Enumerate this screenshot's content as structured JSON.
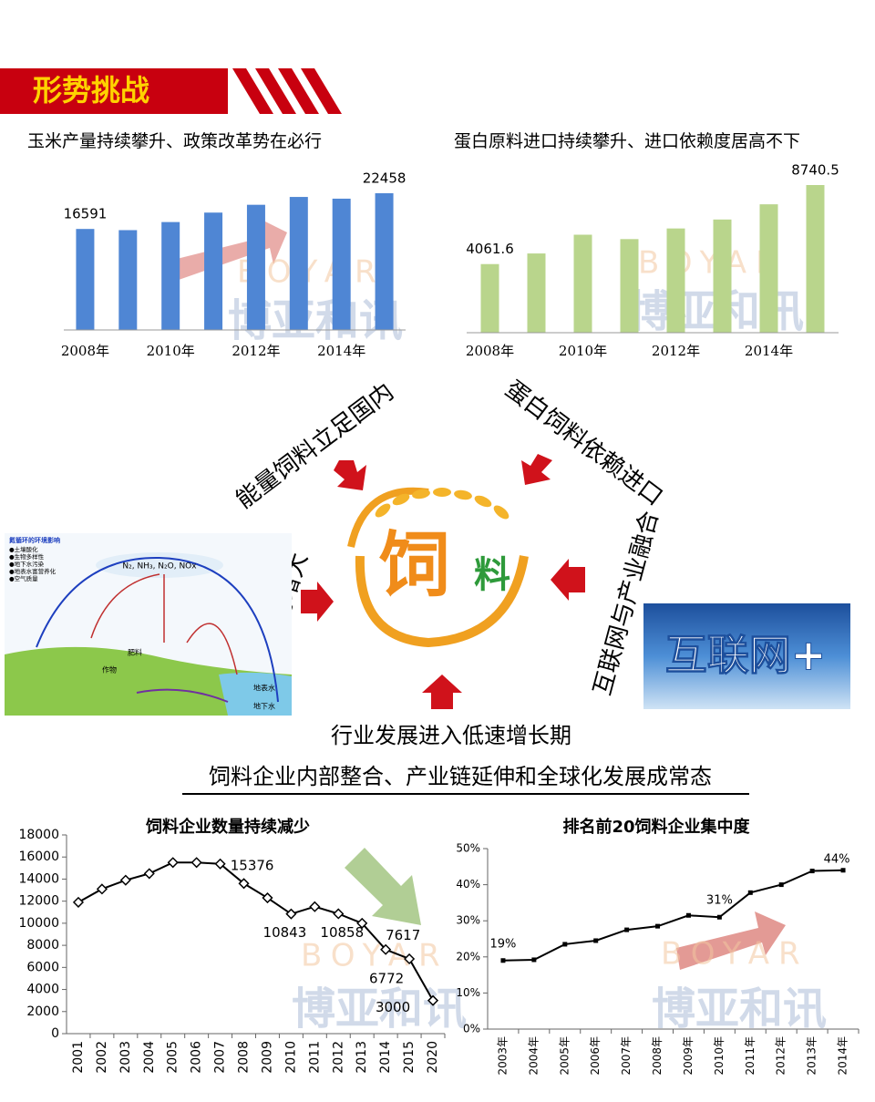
{
  "header": {
    "title": "形势挑战"
  },
  "watermark": {
    "latin": "BOYAR",
    "chinese": "博亚和讯"
  },
  "chart_data": [
    {
      "type": "bar",
      "title": "玉米产量持续攀升、政策改革势在必行",
      "categories": [
        "2008年",
        null,
        "2010年",
        null,
        "2012年",
        null,
        "2014年",
        null
      ],
      "values": [
        16591,
        16397,
        17725,
        19278,
        20561,
        21849,
        21565,
        22458
      ],
      "value_labels": [
        "16591",
        null,
        null,
        null,
        null,
        null,
        null,
        "22458"
      ],
      "color": "#4f86d4"
    },
    {
      "type": "bar",
      "title": "蛋白原料进口持续攀升、进口依赖度居高不下",
      "categories": [
        "2008年",
        null,
        "2010年",
        null,
        "2012年",
        null,
        "2014年",
        null
      ],
      "values": [
        4061.6,
        4690,
        5800,
        5540,
        6170,
        6700,
        7600,
        8740.5
      ],
      "value_labels": [
        "4061.6",
        null,
        null,
        null,
        null,
        null,
        null,
        "8740.5"
      ],
      "color": "#b9d58c"
    },
    {
      "type": "line",
      "title": "饲料企业数量持续减少",
      "categories": [
        "2001",
        "2002",
        "2003",
        "2004",
        "2005",
        "2006",
        "2007",
        "2008",
        "2009",
        "2010",
        "2011",
        "2012",
        "2013",
        "2014",
        "2015",
        "2020"
      ],
      "values": [
        11900,
        13100,
        13900,
        14500,
        15500,
        15500,
        15376,
        13600,
        12300,
        10843,
        11500,
        10858,
        10000,
        7617,
        6772,
        3000
      ],
      "value_labels": [
        null,
        null,
        null,
        null,
        null,
        null,
        "15376",
        null,
        null,
        "10843",
        null,
        "10858",
        null,
        "7617",
        "6772",
        "3000"
      ],
      "color": "#000000",
      "marker": "diamond",
      "ylim": [
        0,
        18000
      ],
      "yticks": [
        0,
        2000,
        4000,
        6000,
        8000,
        10000,
        12000,
        14000,
        16000,
        18000
      ]
    },
    {
      "type": "line",
      "title": "排名前20饲料企业集中度",
      "categories": [
        "2003年",
        "2004年",
        "2005年",
        "2006年",
        "2007年",
        "2008年",
        "2009年",
        "2010年",
        "2011年",
        "2012年",
        "2013年",
        "2014年"
      ],
      "values": [
        19,
        19.2,
        23.5,
        24.5,
        27.5,
        28.5,
        31.5,
        31,
        37.8,
        40,
        43.8,
        44
      ],
      "value_labels": [
        "19%",
        null,
        null,
        null,
        null,
        null,
        null,
        "31%",
        null,
        null,
        null,
        "44%"
      ],
      "color": "#000000",
      "marker": "square",
      "ylim": [
        0,
        50
      ],
      "yticks": [
        {
          "value": 0,
          "label": "0%"
        },
        {
          "value": 10,
          "label": "10%"
        },
        {
          "value": 20,
          "label": "20%"
        },
        {
          "value": 30,
          "label": "30%"
        },
        {
          "value": 40,
          "label": "40%"
        },
        {
          "value": 50,
          "label": "50%"
        }
      ]
    }
  ],
  "diagram": {
    "energy": "能量饲料立足国内",
    "protein": "蛋白饲料依赖进口",
    "environment": "环保压力增大",
    "internet": "互联网与产业融合",
    "slowdown": "行业发展进入低速增长期",
    "consolidation": "饲料企业内部整合、产业链延伸和全球化发展成常态",
    "logo_main": "饲",
    "logo_sub": "料",
    "internet_badge": "互联网+",
    "nitrogen": {
      "title": "氮循环的环境影响",
      "items": [
        "●土壤酸化",
        "●生物多样性",
        "●地下水污染",
        "●地表水富营养化",
        "●空气质量"
      ],
      "gases": "N₂, NH₃, N₂O, NOx",
      "surface_water": "地表水",
      "ground_water": "地下水",
      "crop": "作物",
      "fertilizer": "肥料"
    }
  }
}
